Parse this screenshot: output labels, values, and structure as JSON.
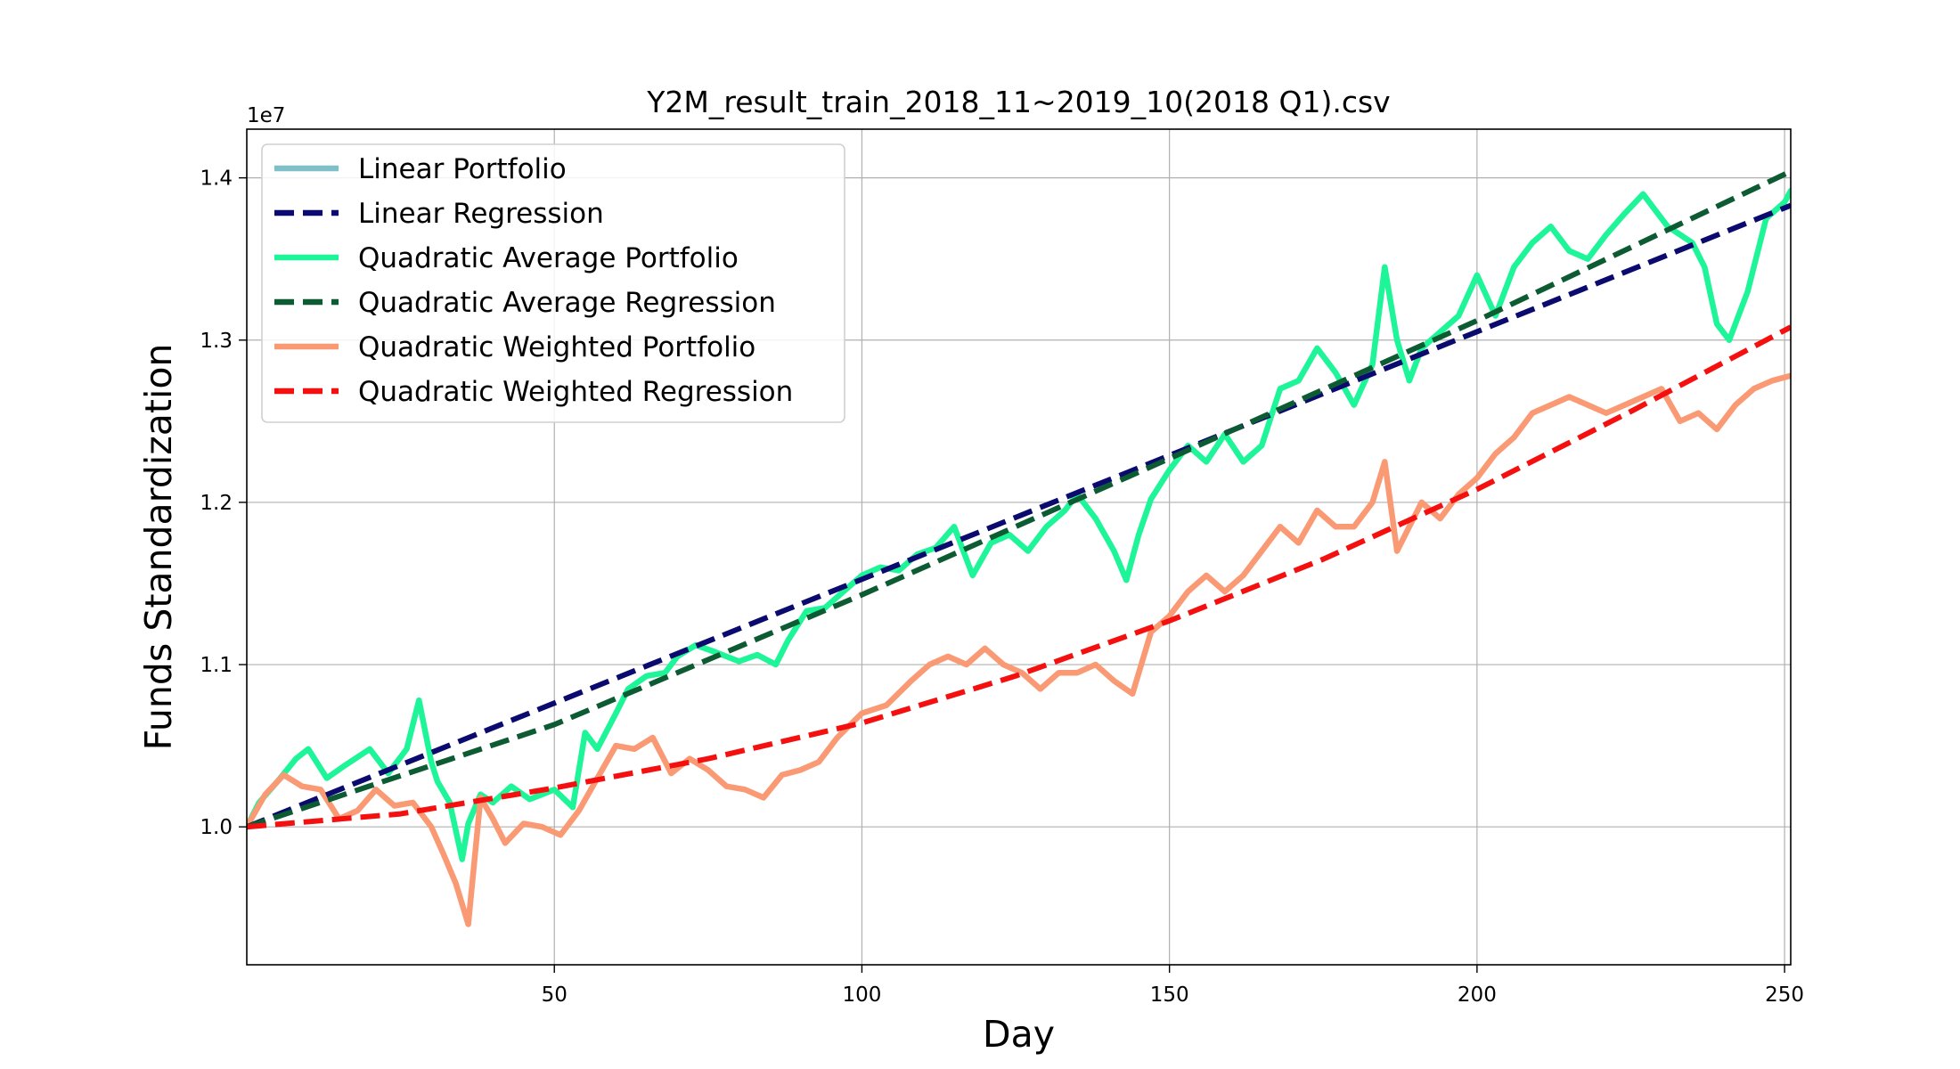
{
  "chart_data": {
    "type": "line",
    "title": "Y2M_result_train_2018_11~2019_10(2018 Q1).csv",
    "xlabel": "Day",
    "ylabel": "Funds Standardization",
    "y_offset_label": "1e7",
    "xlim": [
      0,
      251
    ],
    "ylim": [
      9150000,
      14300000
    ],
    "x_ticks": [
      50,
      100,
      150,
      200,
      250
    ],
    "x_tick_labels": [
      "50",
      "100",
      "150",
      "200",
      "250"
    ],
    "y_ticks": [
      10000000,
      11000000,
      12000000,
      13000000,
      14000000
    ],
    "y_tick_labels": [
      "1.0",
      "1.1",
      "1.2",
      "1.3",
      "1.4"
    ],
    "grid": true,
    "legend_position": "top-left",
    "series": [
      {
        "name": "Linear Portfolio",
        "color": "#7fbfc8",
        "style": "solid",
        "x": [],
        "y": []
      },
      {
        "name": "Linear Regression",
        "color": "#0b0a6e",
        "style": "dashed",
        "x": [
          0,
          251
        ],
        "y": [
          10000000,
          13830000
        ]
      },
      {
        "name": "Quadratic Average Portfolio",
        "color": "#1ef598",
        "style": "solid",
        "x": [
          0,
          2,
          5,
          8,
          10,
          13,
          16,
          20,
          23,
          26,
          28,
          30,
          31,
          33,
          35,
          36,
          38,
          40,
          43,
          46,
          50,
          53,
          55,
          57,
          60,
          62,
          65,
          68,
          70,
          73,
          76,
          80,
          83,
          86,
          88,
          91,
          94,
          97,
          100,
          103,
          106,
          109,
          112,
          115,
          118,
          121,
          124,
          127,
          130,
          133,
          135,
          138,
          141,
          143,
          145,
          147,
          150,
          153,
          156,
          159,
          162,
          165,
          168,
          171,
          174,
          177,
          180,
          183,
          185,
          187,
          189,
          191,
          194,
          197,
          200,
          203,
          206,
          209,
          212,
          215,
          218,
          221,
          224,
          227,
          229,
          231,
          233,
          235,
          237,
          239,
          241,
          244,
          247,
          250,
          251
        ],
        "y": [
          10000000,
          10150000,
          10280000,
          10420000,
          10480000,
          10300000,
          10380000,
          10480000,
          10330000,
          10480000,
          10780000,
          10400000,
          10280000,
          10150000,
          9800000,
          10020000,
          10200000,
          10150000,
          10250000,
          10170000,
          10230000,
          10120000,
          10580000,
          10480000,
          10700000,
          10850000,
          10930000,
          10950000,
          11050000,
          11120000,
          11080000,
          11020000,
          11060000,
          11000000,
          11150000,
          11330000,
          11350000,
          11450000,
          11550000,
          11600000,
          11580000,
          11680000,
          11720000,
          11850000,
          11550000,
          11750000,
          11800000,
          11700000,
          11850000,
          11950000,
          12050000,
          11900000,
          11700000,
          11520000,
          11800000,
          12020000,
          12200000,
          12350000,
          12250000,
          12420000,
          12250000,
          12350000,
          12700000,
          12750000,
          12950000,
          12800000,
          12600000,
          12850000,
          13450000,
          13000000,
          12750000,
          12950000,
          13050000,
          13150000,
          13400000,
          13150000,
          13450000,
          13600000,
          13700000,
          13550000,
          13500000,
          13650000,
          13780000,
          13900000,
          13800000,
          13700000,
          13650000,
          13600000,
          13450000,
          13100000,
          13000000,
          13300000,
          13750000,
          13850000,
          13920000
        ]
      },
      {
        "name": "Quadratic Average Regression",
        "color": "#0c5b33",
        "style": "dashed",
        "x": [
          0,
          50,
          100,
          150,
          200,
          251
        ],
        "y": [
          10000000,
          10630000,
          11430000,
          12270000,
          13120000,
          14040000
        ]
      },
      {
        "name": "Quadratic Weighted Portfolio",
        "color": "#fa9a74",
        "style": "solid",
        "x": [
          0,
          3,
          6,
          9,
          12,
          15,
          18,
          21,
          24,
          27,
          30,
          32,
          34,
          36,
          38,
          40,
          42,
          45,
          48,
          51,
          54,
          57,
          60,
          63,
          66,
          69,
          72,
          75,
          78,
          81,
          84,
          87,
          90,
          93,
          96,
          100,
          104,
          108,
          111,
          114,
          117,
          120,
          123,
          126,
          129,
          132,
          135,
          138,
          141,
          144,
          147,
          150,
          153,
          156,
          159,
          162,
          165,
          168,
          171,
          174,
          177,
          180,
          183,
          185,
          187,
          189,
          191,
          194,
          197,
          200,
          203,
          206,
          209,
          212,
          215,
          218,
          221,
          224,
          227,
          230,
          233,
          236,
          239,
          242,
          245,
          248,
          251
        ],
        "y": [
          10000000,
          10200000,
          10320000,
          10250000,
          10230000,
          10050000,
          10100000,
          10230000,
          10130000,
          10150000,
          10000000,
          9830000,
          9650000,
          9400000,
          10180000,
          10050000,
          9900000,
          10020000,
          10000000,
          9950000,
          10100000,
          10300000,
          10500000,
          10480000,
          10550000,
          10330000,
          10420000,
          10350000,
          10250000,
          10230000,
          10180000,
          10320000,
          10350000,
          10400000,
          10550000,
          10700000,
          10750000,
          10900000,
          11000000,
          11050000,
          11000000,
          11100000,
          11000000,
          10950000,
          10850000,
          10950000,
          10950000,
          11000000,
          10900000,
          10820000,
          11200000,
          11300000,
          11450000,
          11550000,
          11450000,
          11550000,
          11700000,
          11850000,
          11750000,
          11950000,
          11850000,
          11850000,
          12000000,
          12250000,
          11700000,
          11850000,
          12000000,
          11900000,
          12050000,
          12150000,
          12300000,
          12400000,
          12550000,
          12600000,
          12650000,
          12600000,
          12550000,
          12600000,
          12650000,
          12700000,
          12500000,
          12550000,
          12450000,
          12600000,
          12700000,
          12750000,
          12780000
        ]
      },
      {
        "name": "Quadratic Weighted Regression",
        "color": "#f51010",
        "style": "dashed",
        "x": [
          0,
          25,
          50,
          75,
          100,
          125,
          150,
          175,
          200,
          225,
          251
        ],
        "y": [
          10000000,
          10080000,
          10240000,
          10420000,
          10640000,
          10930000,
          11270000,
          11650000,
          12080000,
          12560000,
          13080000
        ]
      }
    ]
  }
}
